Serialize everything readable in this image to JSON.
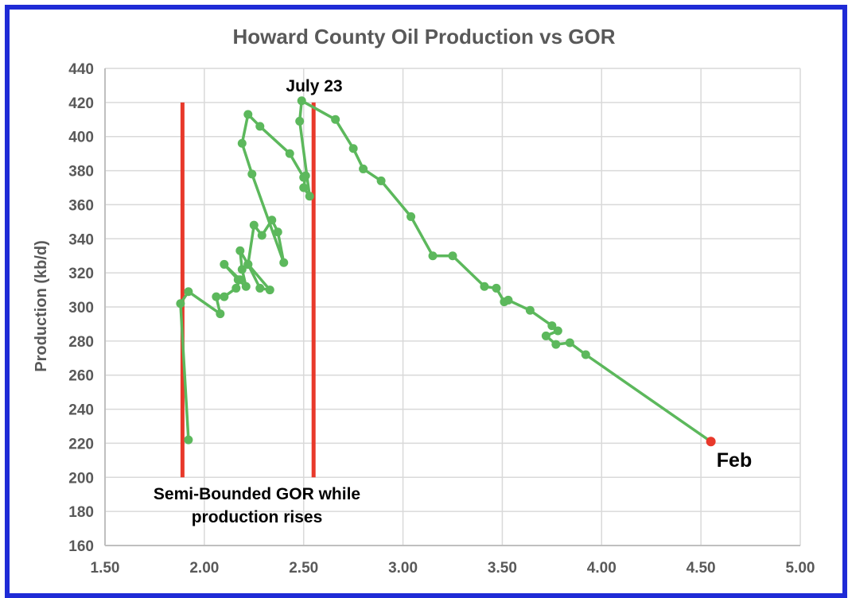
{
  "chart_data": {
    "type": "scatter",
    "title": "Howard County Oil Production vs GOR",
    "xlabel": "",
    "ylabel": "Production (kb/d)",
    "xlim": [
      1.5,
      5.0
    ],
    "ylim": [
      160,
      440
    ],
    "x_ticks": [
      "1.50",
      "2.00",
      "2.50",
      "3.00",
      "3.50",
      "4.00",
      "4.50",
      "5.00"
    ],
    "y_ticks": [
      "160",
      "180",
      "200",
      "220",
      "240",
      "260",
      "280",
      "300",
      "320",
      "340",
      "360",
      "380",
      "400",
      "420",
      "440"
    ],
    "grid": true,
    "series": [
      {
        "color": "#5cb85c",
        "points": [
          [
            1.92,
            222
          ],
          [
            1.88,
            302
          ],
          [
            1.92,
            309
          ],
          [
            2.08,
            296
          ],
          [
            2.06,
            306
          ],
          [
            2.1,
            306
          ],
          [
            2.16,
            311
          ],
          [
            2.18,
            316
          ],
          [
            2.1,
            325
          ],
          [
            2.17,
            316
          ],
          [
            2.21,
            312
          ],
          [
            2.19,
            322
          ],
          [
            2.18,
            333
          ],
          [
            2.22,
            325
          ],
          [
            2.28,
            311
          ],
          [
            2.33,
            310
          ],
          [
            2.22,
            325
          ],
          [
            2.25,
            348
          ],
          [
            2.29,
            342
          ],
          [
            2.34,
            351
          ],
          [
            2.37,
            344
          ],
          [
            2.4,
            326
          ],
          [
            2.24,
            378
          ],
          [
            2.19,
            396
          ],
          [
            2.22,
            413
          ],
          [
            2.28,
            406
          ],
          [
            2.43,
            390
          ],
          [
            2.5,
            376
          ],
          [
            2.51,
            377
          ],
          [
            2.5,
            370
          ],
          [
            2.53,
            365
          ],
          [
            2.48,
            409
          ],
          [
            2.49,
            421
          ],
          [
            2.66,
            410
          ],
          [
            2.75,
            393
          ],
          [
            2.8,
            381
          ],
          [
            2.89,
            374
          ],
          [
            3.04,
            353
          ],
          [
            3.15,
            330
          ],
          [
            3.25,
            330
          ],
          [
            3.41,
            312
          ],
          [
            3.47,
            311
          ],
          [
            3.51,
            303
          ],
          [
            3.53,
            304
          ],
          [
            3.64,
            298
          ],
          [
            3.75,
            289
          ],
          [
            3.78,
            286
          ],
          [
            3.72,
            283
          ],
          [
            3.77,
            278
          ],
          [
            3.84,
            279
          ],
          [
            3.92,
            272
          ],
          [
            4.55,
            221
          ]
        ]
      }
    ],
    "highlight_point": {
      "x": 4.55,
      "y": 221,
      "color": "#e8392b"
    },
    "reference_lines": [
      {
        "x": 1.89,
        "y_from": 200,
        "y_to": 420,
        "color": "#e8392b"
      },
      {
        "x": 2.55,
        "y_from": 200,
        "y_to": 420,
        "color": "#e8392b"
      }
    ],
    "annotations": {
      "peak": "July 23",
      "latest": "Feb",
      "band_line1": "Semi-Bounded GOR while",
      "band_line2": "production rises"
    }
  }
}
